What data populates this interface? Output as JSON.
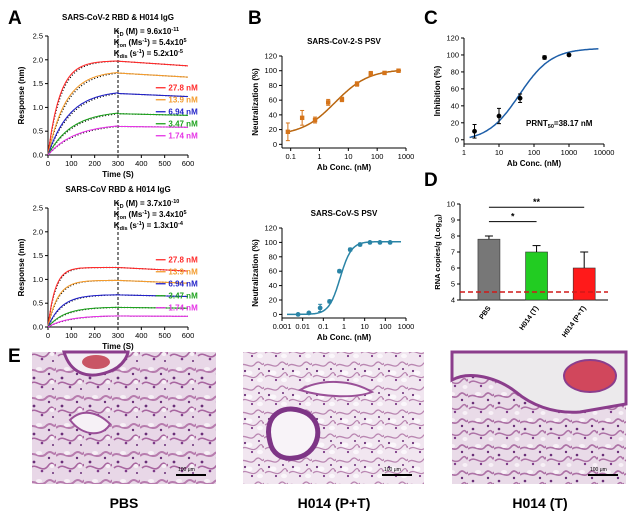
{
  "panel_letters": {
    "A": "A",
    "B": "B",
    "C": "C",
    "D": "D",
    "E": "E"
  },
  "colors": {
    "red": "#ff2b2b",
    "orange": "#f39c2e",
    "blue": "#2323c8",
    "green": "#1fa21f",
    "magenta": "#e533e5",
    "b_curve": "#b9660f",
    "b_curve2": "#2a84a6",
    "c_curve": "#1d5ea8",
    "bar_pbs": "#777777",
    "bar_t": "#22cc22",
    "bar_pt": "#ff1a1a",
    "lod": "#d11919"
  },
  "chart_data": [
    {
      "id": "A1",
      "type": "line",
      "title": "SARS-CoV-2 RBD & H014 IgG",
      "xlabel": "Time (S)",
      "ylabel": "Response (nm)",
      "xlim": [
        0,
        600
      ],
      "ylim": [
        0,
        2.5
      ],
      "xticks": [
        "0",
        "100",
        "200",
        "300",
        "400",
        "500",
        "600"
      ],
      "yticks": [
        "0.0",
        "0.5",
        "1.0",
        "1.5",
        "2.0",
        "2.5"
      ],
      "dissociation_start": 300,
      "kinetics": [
        {
          "label": "K",
          "sub": "D",
          "unit": " (M) = ",
          "value": "9.6x10",
          "exp": "-11"
        },
        {
          "label": "K",
          "sub": "on",
          "unit": " (Ms",
          "unitexp": "-1",
          "unit2": ") = ",
          "value": "5.4x10",
          "exp": "5"
        },
        {
          "label": "K",
          "sub": "dis",
          "unit": " (s",
          "unitexp": "-1",
          "unit2": ") = ",
          "value": "5.2x10",
          "exp": "-5"
        }
      ],
      "series": [
        {
          "name": "27.8 nM",
          "plateau": 1.98,
          "k": 0.018,
          "decay": 0.05
        },
        {
          "name": "13.9 nM",
          "plateau": 1.77,
          "k": 0.012,
          "decay": 0.05
        },
        {
          "name": "6.94 nM",
          "plateau": 1.36,
          "k": 0.01,
          "decay": 0.05
        },
        {
          "name": "3.47 nM",
          "plateau": 0.93,
          "k": 0.009,
          "decay": 0.04
        },
        {
          "name": "1.74 nM",
          "plateau": 0.66,
          "k": 0.008,
          "decay": 0.03
        }
      ]
    },
    {
      "id": "A2",
      "type": "line",
      "title": "SARS-CoV RBD & H014 IgG",
      "xlabel": "Time (S)",
      "ylabel": "Response (nm)",
      "xlim": [
        0,
        600
      ],
      "ylim": [
        0,
        2.5
      ],
      "xticks": [
        "0",
        "100",
        "200",
        "300",
        "400",
        "500",
        "600"
      ],
      "yticks": [
        "0.0",
        "0.5",
        "1.0",
        "1.5",
        "2.0",
        "2.5"
      ],
      "dissociation_start": 300,
      "kinetics": [
        {
          "label": "K",
          "sub": "D",
          "unit": " (M) = ",
          "value": "3.7x10",
          "exp": "-10"
        },
        {
          "label": "K",
          "sub": "on",
          "unit": " (Ms",
          "unitexp": "-1",
          "unit2": ") = ",
          "value": "3.4x10",
          "exp": "5"
        },
        {
          "label": "K",
          "sub": "dis",
          "unit": " (s",
          "unitexp": "-1",
          "unit2": ") = ",
          "value": "1.3x10",
          "exp": "-4"
        }
      ],
      "series": [
        {
          "name": "27.8 nM",
          "plateau": 1.25,
          "k": 0.03,
          "decay": 0.06
        },
        {
          "name": "13.9 nM",
          "plateau": 0.98,
          "k": 0.022,
          "decay": 0.06
        },
        {
          "name": "6.94 nM",
          "plateau": 0.68,
          "k": 0.016,
          "decay": 0.05
        },
        {
          "name": "3.47 nM",
          "plateau": 0.42,
          "k": 0.013,
          "decay": 0.04
        },
        {
          "name": "1.74 nM",
          "plateau": 0.24,
          "k": 0.011,
          "decay": 0.03
        }
      ]
    },
    {
      "id": "B1",
      "type": "scatter",
      "title": "SARS-CoV-2-S PSV",
      "xlabel": "Ab Conc. (nM)",
      "ylabel": "Neutralization (%)",
      "xscale": "log",
      "xlim": [
        0.05,
        1000
      ],
      "ylim": [
        -5,
        120
      ],
      "xticks": [
        {
          "v": 0.1,
          "t": "0.1"
        },
        {
          "v": 1,
          "t": "1"
        },
        {
          "v": 10,
          "t": "10"
        },
        {
          "v": 100,
          "t": "100"
        },
        {
          "v": 1000,
          "t": "1000"
        }
      ],
      "yticks": [
        "0",
        "20",
        "40",
        "60",
        "80",
        "100",
        "120"
      ],
      "points": [
        [
          0.08,
          17,
          12
        ],
        [
          0.25,
          36,
          10
        ],
        [
          0.7,
          33,
          4
        ],
        [
          2,
          57,
          4
        ],
        [
          6,
          61,
          3
        ],
        [
          20,
          82,
          3
        ],
        [
          60,
          96,
          3
        ],
        [
          180,
          97,
          2
        ],
        [
          550,
          100,
          2
        ]
      ],
      "fit": {
        "bottom": 12,
        "top": 102,
        "ec50": 3.5,
        "hill": 0.75
      }
    },
    {
      "id": "B2",
      "type": "scatter",
      "title": "SARS-CoV-S PSV",
      "xlabel": "Ab Conc. (nM)",
      "ylabel": "Neutralization (%)",
      "xscale": "log",
      "xlim": [
        0.001,
        1000
      ],
      "ylim": [
        -5,
        120
      ],
      "xticks": [
        {
          "v": 0.001,
          "t": "0.001"
        },
        {
          "v": 0.01,
          "t": "0.01"
        },
        {
          "v": 0.1,
          "t": "0.1"
        },
        {
          "v": 1,
          "t": "1"
        },
        {
          "v": 10,
          "t": "10"
        },
        {
          "v": 100,
          "t": "100"
        },
        {
          "v": 1000,
          "t": "1000"
        }
      ],
      "yticks": [
        "0",
        "20",
        "40",
        "60",
        "80",
        "100",
        "120"
      ],
      "points": [
        [
          0.006,
          0,
          1
        ],
        [
          0.02,
          2,
          1
        ],
        [
          0.07,
          9,
          5
        ],
        [
          0.2,
          18,
          2
        ],
        [
          0.6,
          60,
          2
        ],
        [
          2,
          90,
          2
        ],
        [
          6,
          97,
          2
        ],
        [
          18,
          100,
          1
        ],
        [
          55,
          100,
          1
        ],
        [
          170,
          100,
          1
        ]
      ],
      "fit": {
        "bottom": 0,
        "top": 101,
        "ec50": 0.65,
        "hill": 1.6
      }
    },
    {
      "id": "C",
      "type": "scatter",
      "xlabel": "Ab Conc. (nM)",
      "ylabel": "Inhibition (%)",
      "xscale": "log",
      "xlim": [
        1,
        10000
      ],
      "ylim": [
        -5,
        120
      ],
      "xticks": [
        {
          "v": 1,
          "t": "1"
        },
        {
          "v": 10,
          "t": "10"
        },
        {
          "v": 100,
          "t": "100"
        },
        {
          "v": 1000,
          "t": "1000"
        },
        {
          "v": 10000,
          "t": "10000"
        }
      ],
      "yticks": [
        "0",
        "20",
        "40",
        "60",
        "80",
        "100",
        "120"
      ],
      "points": [
        [
          2,
          10,
          8
        ],
        [
          10,
          28,
          9
        ],
        [
          40,
          49,
          5
        ],
        [
          200,
          97,
          2
        ],
        [
          1000,
          100,
          1
        ]
      ],
      "fit": {
        "bottom": -2,
        "top": 108,
        "ec50": 38.17,
        "hill": 0.95
      },
      "annotation": {
        "prefix": "PRNT",
        "sub": "50",
        "suffix": "=38.17 nM"
      }
    },
    {
      "id": "D",
      "type": "bar",
      "ylabel": "RNA copies/g (Log",
      "ylabel_sub": "10",
      "ylabel_end": ")",
      "ylim": [
        4,
        10
      ],
      "yticks": [
        "4",
        "5",
        "6",
        "7",
        "8",
        "9",
        "10"
      ],
      "categories": [
        "PBS",
        "H014 (T)",
        "H014 (P+T)"
      ],
      "values": [
        7.8,
        7.0,
        6.0
      ],
      "errors": [
        0.2,
        0.4,
        1.0
      ],
      "lod": 4.5,
      "significance": [
        {
          "from": 0,
          "to": 1,
          "label": "*"
        },
        {
          "from": 0,
          "to": 2,
          "label": "**"
        }
      ]
    }
  ],
  "histology": {
    "captions": [
      "PBS",
      "H014 (P+T)",
      "H014 (T)"
    ],
    "scalebar": "100 μm"
  }
}
